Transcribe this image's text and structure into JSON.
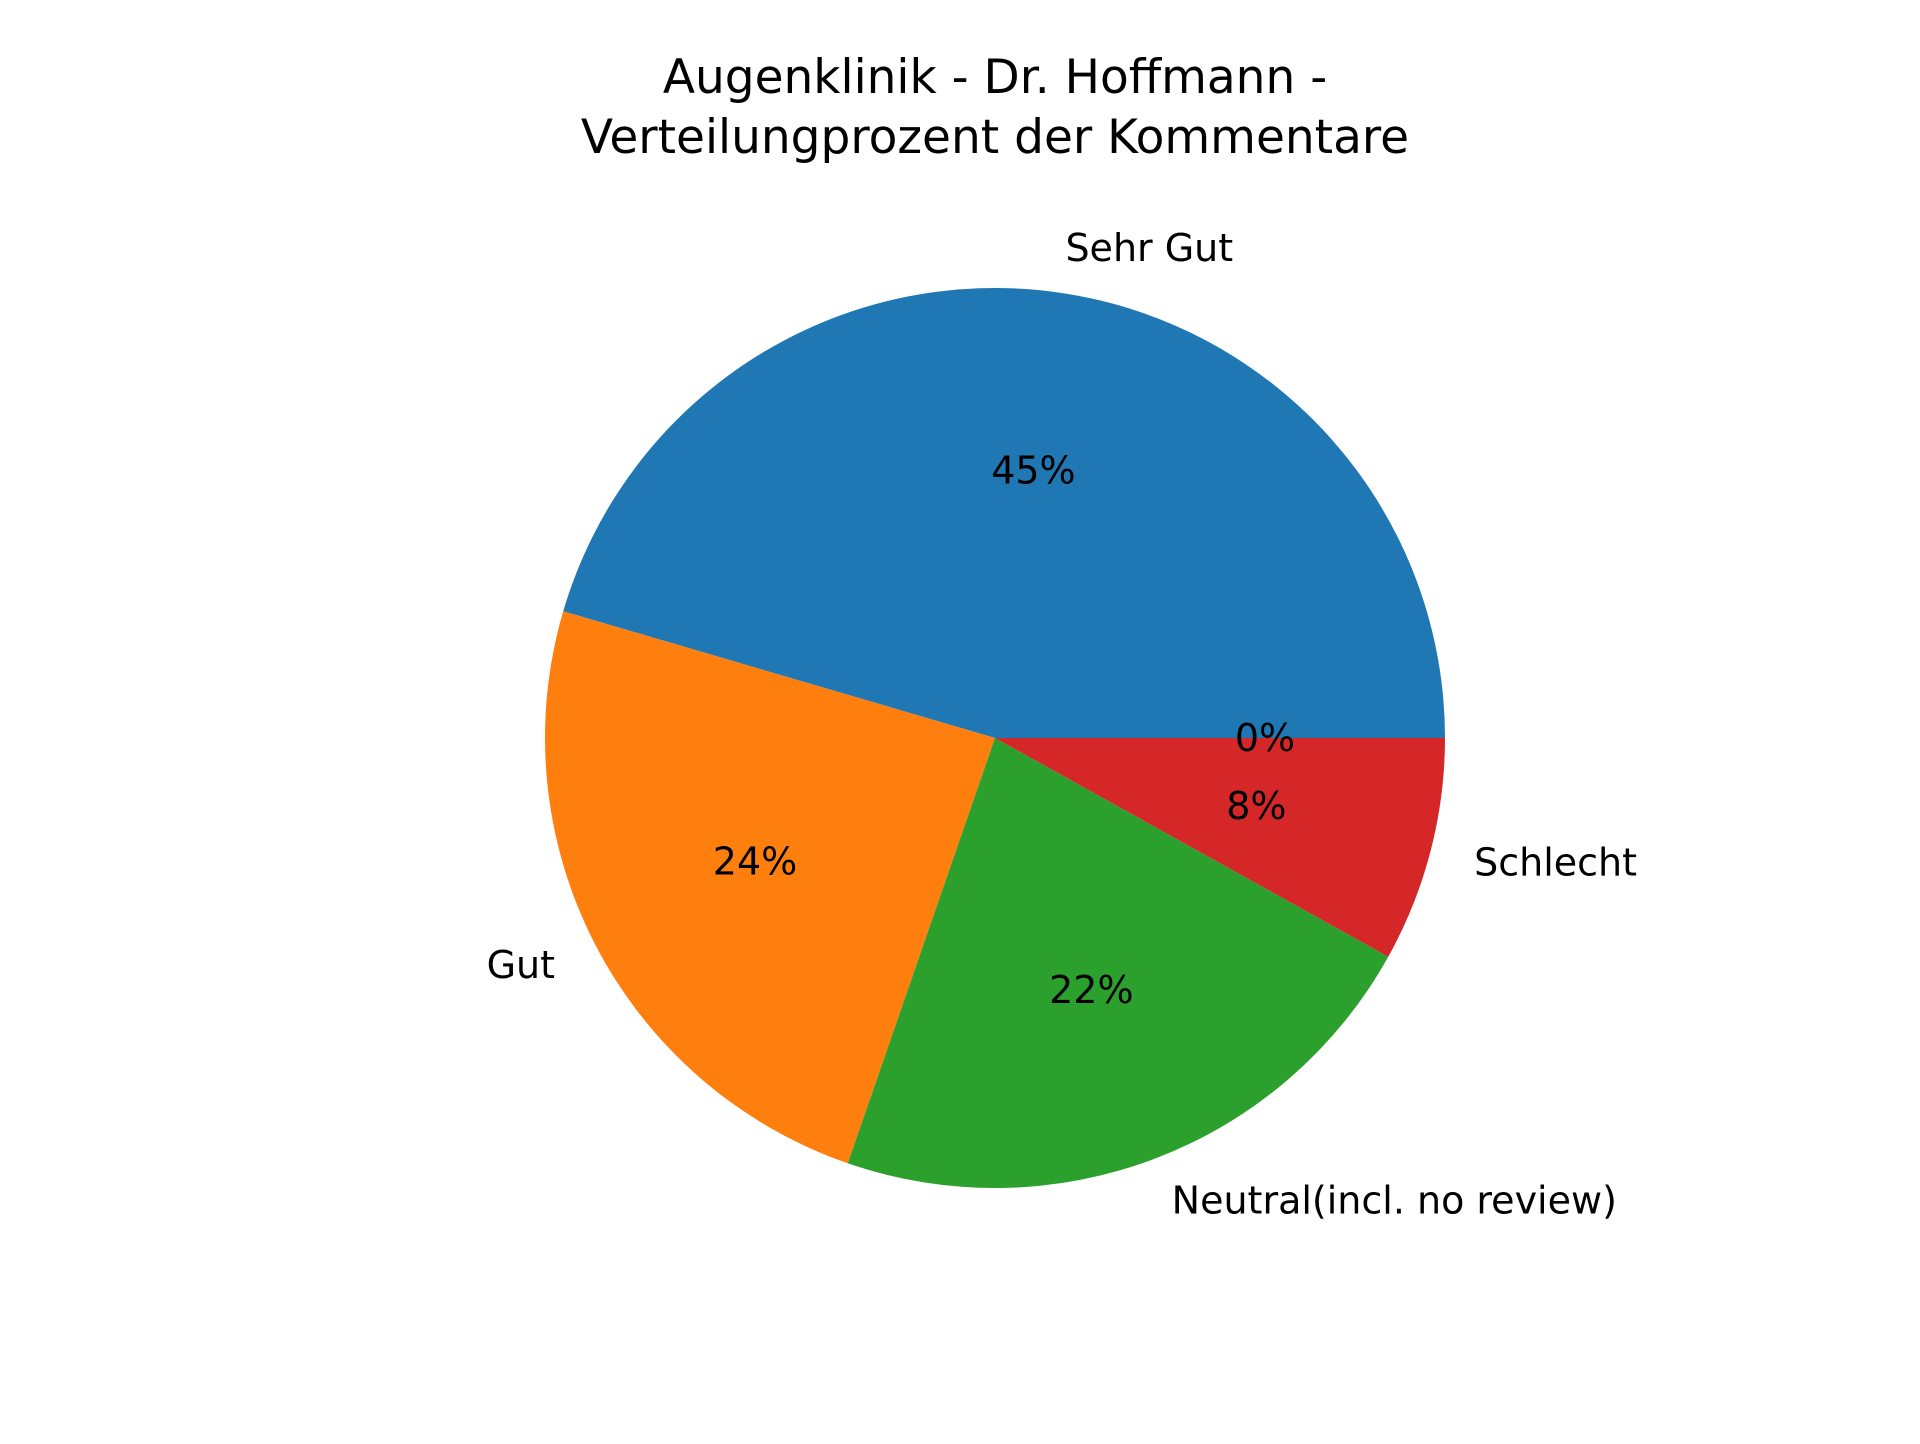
{
  "chart_data": {
    "type": "pie",
    "title": "Augenklinik - Dr. Hoffmann  -\nVerteilungprozent der Kommentare",
    "categories": [
      "Sehr Gut",
      "Gut",
      "Neutral(incl. no review)",
      "Schlecht",
      ""
    ],
    "values": [
      45,
      24,
      22,
      8,
      0
    ],
    "value_labels": [
      "45%",
      "24%",
      "22%",
      "8%",
      "0%"
    ],
    "colors": [
      "#1f77b4",
      "#ff7f0e",
      "#2ca02c",
      "#d62728",
      "#9467bd"
    ],
    "start_angle_deg": 0,
    "direction": "counterclockwise",
    "legend": "none"
  }
}
